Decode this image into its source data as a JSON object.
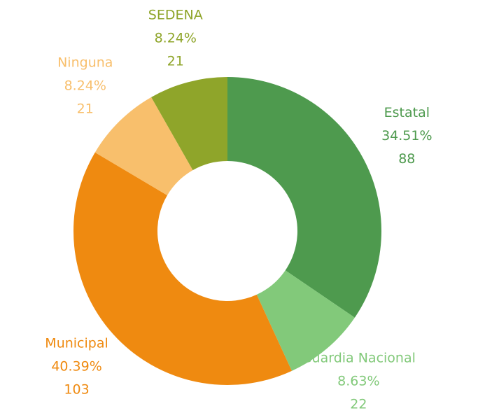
{
  "chart_data": {
    "type": "donut",
    "categories": [
      "Estatal",
      "Guardia Nacional",
      "Municipal",
      "Ninguna",
      "SEDENA"
    ],
    "values": [
      34.51,
      8.63,
      40.39,
      8.24,
      8.24
    ],
    "value_labels": [
      "34.51%",
      "8.63%",
      "40.39%",
      "8.24%",
      "8.24%"
    ],
    "counts": [
      88,
      22,
      103,
      21,
      21
    ],
    "colors": [
      "#4e9a4e",
      "#82c97a",
      "#ef8a10",
      "#f8bf6c",
      "#8fa52a"
    ]
  }
}
